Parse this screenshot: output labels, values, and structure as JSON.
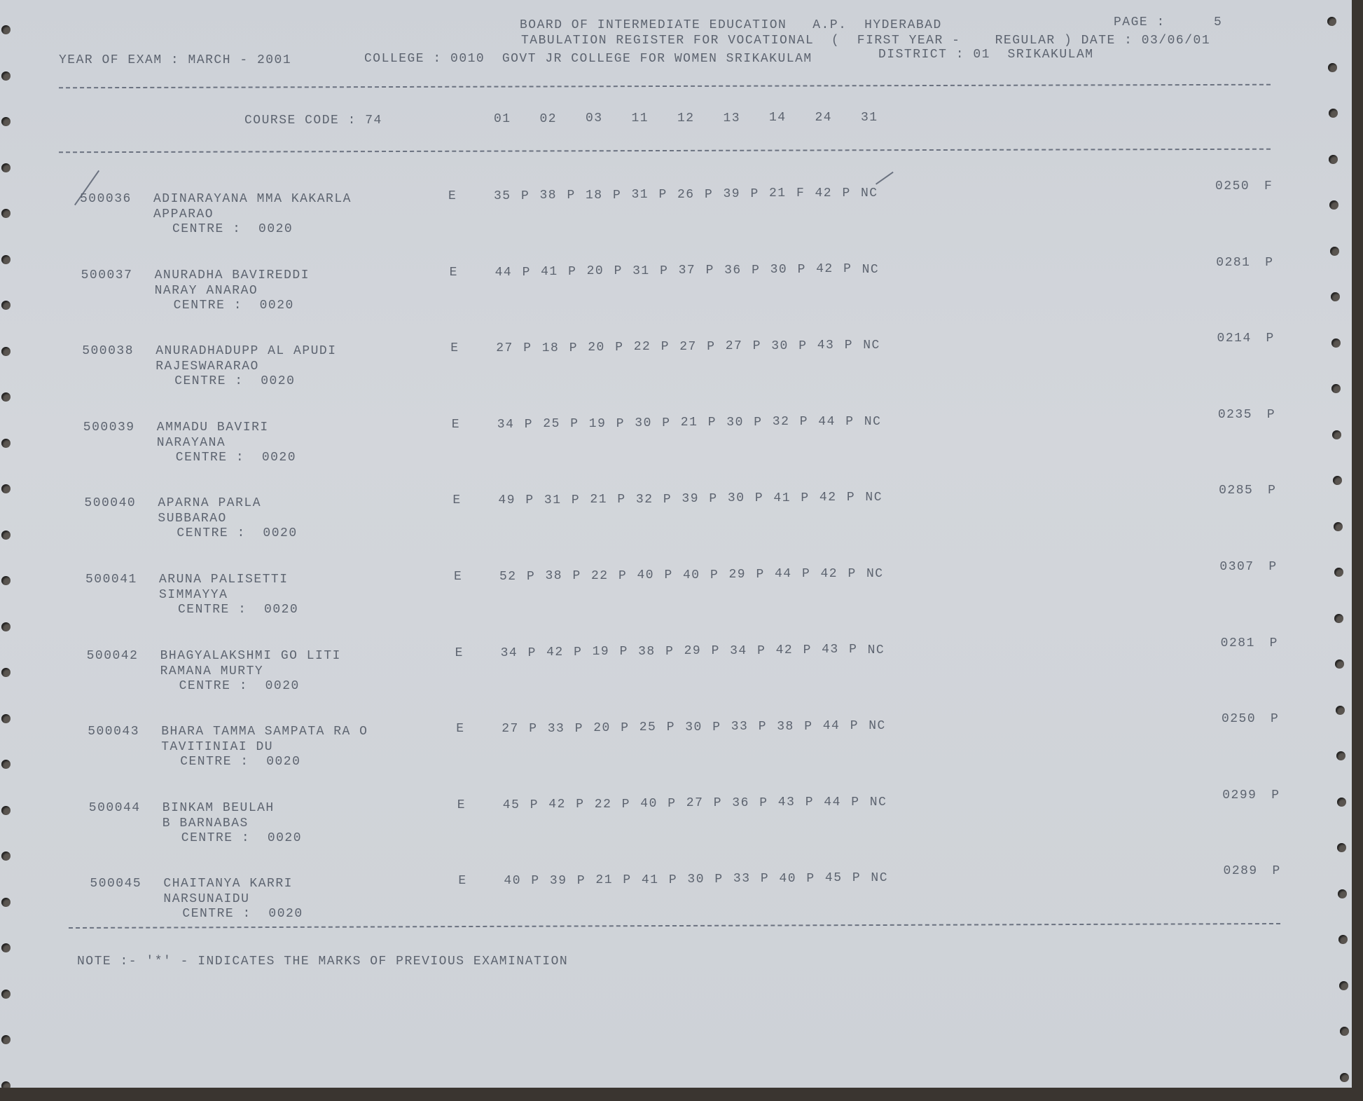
{
  "header": {
    "board": "BOARD OF INTERMEDIATE EDUCATION   A.P.  HYDERABAD",
    "page_label": "PAGE :",
    "page_number": "5",
    "register": "TABULATION REGISTER FOR VOCATIONAL  (  FIRST YEAR -    REGULAR ) DATE : 03/06/01",
    "year_of_exam": "YEAR OF EXAM : MARCH - 2001",
    "college": "COLLEGE : 0010  GOVT JR COLLEGE FOR WOMEN SRIKAKULAM",
    "district": "DISTRICT : 01  SRIKAKULAM"
  },
  "columns": {
    "course_code": "COURSE CODE : 74",
    "subjects": [
      "01",
      "02",
      "03",
      "11",
      "12",
      "13",
      "14",
      "24",
      "31"
    ]
  },
  "students": [
    {
      "id": "500036",
      "name": "ADINARAYANA MMA KAKARLA",
      "father": "APPARAO",
      "centre": "CENTRE :  0020",
      "medium": "E",
      "marks": [
        [
          "35",
          "P"
        ],
        [
          "38",
          "P"
        ],
        [
          "18",
          "P"
        ],
        [
          "31",
          "P"
        ],
        [
          "26",
          "P"
        ],
        [
          "39",
          "P"
        ],
        [
          "21",
          "F"
        ],
        [
          "42",
          "P"
        ]
      ],
      "last": "NC",
      "total": "0250",
      "result": "F"
    },
    {
      "id": "500037",
      "name": "ANURADHA BAVIREDDI",
      "father": "NARAY ANARAO",
      "centre": "CENTRE :  0020",
      "medium": "E",
      "marks": [
        [
          "44",
          "P"
        ],
        [
          "41",
          "P"
        ],
        [
          "20",
          "P"
        ],
        [
          "31",
          "P"
        ],
        [
          "37",
          "P"
        ],
        [
          "36",
          "P"
        ],
        [
          "30",
          "P"
        ],
        [
          "42",
          "P"
        ]
      ],
      "last": "NC",
      "total": "0281",
      "result": "P"
    },
    {
      "id": "500038",
      "name": "ANURADHADUPP AL APUDI",
      "father": "RAJESWARARAO",
      "centre": "CENTRE :  0020",
      "medium": "E",
      "marks": [
        [
          "27",
          "P"
        ],
        [
          "18",
          "P"
        ],
        [
          "20",
          "P"
        ],
        [
          "22",
          "P"
        ],
        [
          "27",
          "P"
        ],
        [
          "27",
          "P"
        ],
        [
          "30",
          "P"
        ],
        [
          "43",
          "P"
        ]
      ],
      "last": "NC",
      "total": "0214",
      "result": "P"
    },
    {
      "id": "500039",
      "name": "AMMADU BAVIRI",
      "father": "NARAYANA",
      "centre": "CENTRE :  0020",
      "medium": "E",
      "marks": [
        [
          "34",
          "P"
        ],
        [
          "25",
          "P"
        ],
        [
          "19",
          "P"
        ],
        [
          "30",
          "P"
        ],
        [
          "21",
          "P"
        ],
        [
          "30",
          "P"
        ],
        [
          "32",
          "P"
        ],
        [
          "44",
          "P"
        ]
      ],
      "last": "NC",
      "total": "0235",
      "result": "P"
    },
    {
      "id": "500040",
      "name": "APARNA PARLA",
      "father": "SUBBARAO",
      "centre": "CENTRE :  0020",
      "medium": "E",
      "marks": [
        [
          "49",
          "P"
        ],
        [
          "31",
          "P"
        ],
        [
          "21",
          "P"
        ],
        [
          "32",
          "P"
        ],
        [
          "39",
          "P"
        ],
        [
          "30",
          "P"
        ],
        [
          "41",
          "P"
        ],
        [
          "42",
          "P"
        ]
      ],
      "last": "NC",
      "total": "0285",
      "result": "P"
    },
    {
      "id": "500041",
      "name": "ARUNA PALISETTI",
      "father": "SIMMAYYA",
      "centre": "CENTRE :  0020",
      "medium": "E",
      "marks": [
        [
          "52",
          "P"
        ],
        [
          "38",
          "P"
        ],
        [
          "22",
          "P"
        ],
        [
          "40",
          "P"
        ],
        [
          "40",
          "P"
        ],
        [
          "29",
          "P"
        ],
        [
          "44",
          "P"
        ],
        [
          "42",
          "P"
        ]
      ],
      "last": "NC",
      "total": "0307",
      "result": "P"
    },
    {
      "id": "500042",
      "name": "BHAGYALAKSHMI GO LITI",
      "father": "RAMANA MURTY",
      "centre": "CENTRE :  0020",
      "medium": "E",
      "marks": [
        [
          "34",
          "P"
        ],
        [
          "42",
          "P"
        ],
        [
          "19",
          "P"
        ],
        [
          "38",
          "P"
        ],
        [
          "29",
          "P"
        ],
        [
          "34",
          "P"
        ],
        [
          "42",
          "P"
        ],
        [
          "43",
          "P"
        ]
      ],
      "last": "NC",
      "total": "0281",
      "result": "P"
    },
    {
      "id": "500043",
      "name": "BHARA TAMMA SAMPATA RA O",
      "father": "TAVITINIAI DU",
      "centre": "CENTRE :  0020",
      "medium": "E",
      "marks": [
        [
          "27",
          "P"
        ],
        [
          "33",
          "P"
        ],
        [
          "20",
          "P"
        ],
        [
          "25",
          "P"
        ],
        [
          "30",
          "P"
        ],
        [
          "33",
          "P"
        ],
        [
          "38",
          "P"
        ],
        [
          "44",
          "P"
        ]
      ],
      "last": "NC",
      "total": "0250",
      "result": "P"
    },
    {
      "id": "500044",
      "name": "BINKAM BEULAH",
      "father": "B BARNABAS",
      "centre": "CENTRE :  0020",
      "medium": "E",
      "marks": [
        [
          "45",
          "P"
        ],
        [
          "42",
          "P"
        ],
        [
          "22",
          "P"
        ],
        [
          "40",
          "P"
        ],
        [
          "27",
          "P"
        ],
        [
          "36",
          "P"
        ],
        [
          "43",
          "P"
        ],
        [
          "44",
          "P"
        ]
      ],
      "last": "NC",
      "total": "0299",
      "result": "P"
    },
    {
      "id": "500045",
      "name": "CHAITANYA KARRI",
      "father": "NARSUNAIDU",
      "centre": "CENTRE :  0020",
      "medium": "E",
      "marks": [
        [
          "40",
          "P"
        ],
        [
          "39",
          "P"
        ],
        [
          "21",
          "P"
        ],
        [
          "41",
          "P"
        ],
        [
          "30",
          "P"
        ],
        [
          "33",
          "P"
        ],
        [
          "40",
          "P"
        ],
        [
          "45",
          "P"
        ]
      ],
      "last": "NC",
      "total": "0289",
      "result": "P"
    }
  ],
  "footer": {
    "note": "NOTE :- '*' - INDICATES THE MARKS OF PREVIOUS EXAMINATION"
  },
  "colors": {
    "ink": "#5d6470",
    "paper": "#cfd3d8"
  }
}
